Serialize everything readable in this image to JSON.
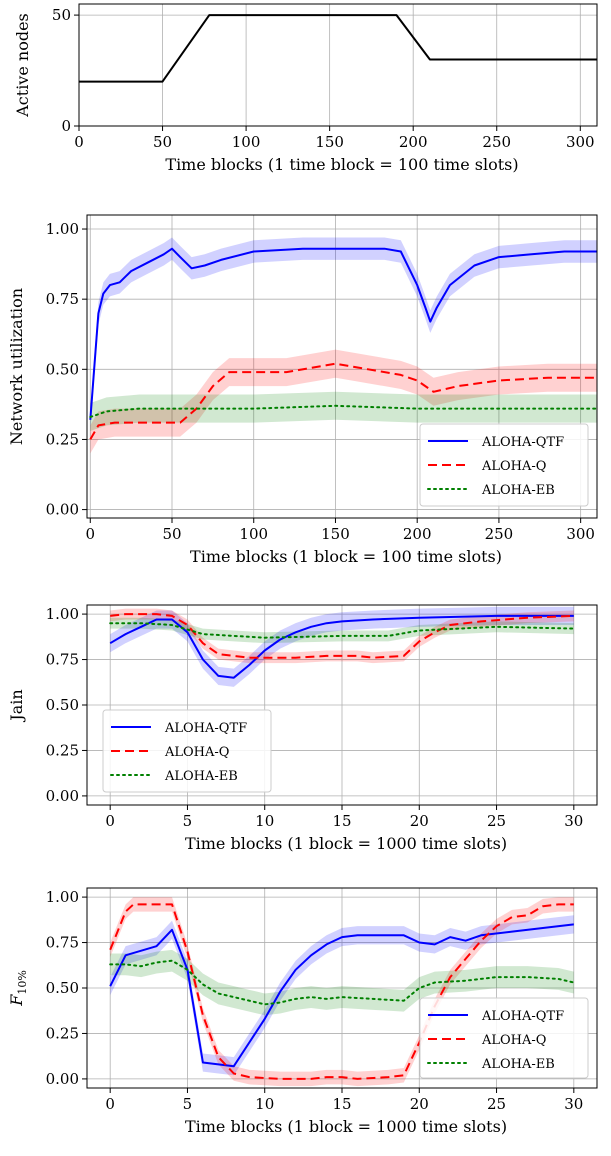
{
  "chart_data": [
    {
      "type": "line",
      "xlabel": "Time blocks (1 time block = 100 time slots)",
      "ylabel": "Active nodes",
      "xlim": [
        0,
        310
      ],
      "ylim": [
        0,
        55
      ],
      "xticks": [
        0,
        50,
        100,
        150,
        200,
        250,
        300
      ],
      "yticks": [
        0,
        50
      ],
      "grid": true,
      "series": [
        {
          "color": "#000000",
          "points": [
            [
              0,
              20
            ],
            [
              50,
              20
            ],
            [
              78,
              50
            ],
            [
              190,
              50
            ],
            [
              210,
              30
            ],
            [
              310,
              30
            ]
          ]
        }
      ]
    },
    {
      "type": "line",
      "xlabel": "Time blocks (1 block = 100 time slots)",
      "ylabel": "Network utilization",
      "xlim": [
        -2,
        310
      ],
      "ylim": [
        -0.03,
        1.05
      ],
      "xticks": [
        0,
        50,
        100,
        150,
        200,
        250,
        300
      ],
      "yticks": [
        0.0,
        0.25,
        0.5,
        0.75,
        1.0
      ],
      "grid": true,
      "legend": "lower-right",
      "series": [
        {
          "name": "ALOHA-QTF",
          "color": "#0000ff",
          "style": "solid",
          "band": 0.04,
          "points": [
            [
              0,
              0.32
            ],
            [
              3,
              0.55
            ],
            [
              5,
              0.7
            ],
            [
              8,
              0.77
            ],
            [
              12,
              0.8
            ],
            [
              18,
              0.81
            ],
            [
              25,
              0.85
            ],
            [
              35,
              0.88
            ],
            [
              45,
              0.91
            ],
            [
              50,
              0.93
            ],
            [
              55,
              0.9
            ],
            [
              62,
              0.86
            ],
            [
              70,
              0.87
            ],
            [
              80,
              0.89
            ],
            [
              100,
              0.92
            ],
            [
              130,
              0.93
            ],
            [
              150,
              0.93
            ],
            [
              180,
              0.93
            ],
            [
              190,
              0.92
            ],
            [
              200,
              0.8
            ],
            [
              205,
              0.72
            ],
            [
              208,
              0.67
            ],
            [
              212,
              0.72
            ],
            [
              220,
              0.8
            ],
            [
              235,
              0.87
            ],
            [
              250,
              0.9
            ],
            [
              270,
              0.91
            ],
            [
              290,
              0.92
            ],
            [
              310,
              0.92
            ]
          ]
        },
        {
          "name": "ALOHA-Q",
          "color": "#ff0000",
          "style": "dashed",
          "band": 0.05,
          "points": [
            [
              0,
              0.25
            ],
            [
              5,
              0.3
            ],
            [
              15,
              0.31
            ],
            [
              50,
              0.31
            ],
            [
              55,
              0.31
            ],
            [
              65,
              0.36
            ],
            [
              75,
              0.44
            ],
            [
              85,
              0.49
            ],
            [
              100,
              0.49
            ],
            [
              120,
              0.49
            ],
            [
              150,
              0.52
            ],
            [
              170,
              0.5
            ],
            [
              190,
              0.48
            ],
            [
              200,
              0.46
            ],
            [
              210,
              0.42
            ],
            [
              225,
              0.44
            ],
            [
              250,
              0.46
            ],
            [
              280,
              0.47
            ],
            [
              310,
              0.47
            ]
          ]
        },
        {
          "name": "ALOHA-EB",
          "color": "#008000",
          "style": "dotted",
          "band": 0.05,
          "points": [
            [
              0,
              0.33
            ],
            [
              10,
              0.35
            ],
            [
              30,
              0.36
            ],
            [
              60,
              0.36
            ],
            [
              100,
              0.36
            ],
            [
              150,
              0.37
            ],
            [
              200,
              0.36
            ],
            [
              250,
              0.36
            ],
            [
              310,
              0.36
            ]
          ]
        }
      ]
    },
    {
      "type": "line",
      "xlabel": "Time blocks (1 block = 1000 time slots)",
      "ylabel": "Jain",
      "xlim": [
        -1.5,
        31.5
      ],
      "ylim": [
        -0.05,
        1.05
      ],
      "xticks": [
        0,
        5,
        10,
        15,
        20,
        25,
        30
      ],
      "yticks": [
        0.0,
        0.25,
        0.5,
        0.75,
        1.0
      ],
      "grid": true,
      "legend": "lower-left",
      "series": [
        {
          "name": "ALOHA-QTF",
          "color": "#0000ff",
          "style": "solid",
          "band": 0.05,
          "points": [
            [
              0,
              0.84
            ],
            [
              1,
              0.89
            ],
            [
              2,
              0.93
            ],
            [
              3,
              0.97
            ],
            [
              4,
              0.97
            ],
            [
              5,
              0.9
            ],
            [
              6,
              0.75
            ],
            [
              7,
              0.66
            ],
            [
              8,
              0.65
            ],
            [
              9,
              0.72
            ],
            [
              10,
              0.8
            ],
            [
              11,
              0.86
            ],
            [
              12,
              0.9
            ],
            [
              13,
              0.93
            ],
            [
              14,
              0.95
            ],
            [
              15,
              0.96
            ],
            [
              17,
              0.97
            ],
            [
              20,
              0.98
            ],
            [
              25,
              0.99
            ],
            [
              30,
              0.99
            ]
          ]
        },
        {
          "name": "ALOHA-Q",
          "color": "#ff0000",
          "style": "dashed",
          "band": 0.03,
          "points": [
            [
              0,
              0.99
            ],
            [
              1,
              1.0
            ],
            [
              2,
              1.0
            ],
            [
              3,
              1.0
            ],
            [
              4,
              0.99
            ],
            [
              5,
              0.94
            ],
            [
              6,
              0.84
            ],
            [
              7,
              0.78
            ],
            [
              8,
              0.77
            ],
            [
              9,
              0.76
            ],
            [
              10,
              0.76
            ],
            [
              12,
              0.76
            ],
            [
              14,
              0.77
            ],
            [
              16,
              0.77
            ],
            [
              17,
              0.76
            ],
            [
              19,
              0.77
            ],
            [
              20,
              0.85
            ],
            [
              21,
              0.9
            ],
            [
              22,
              0.94
            ],
            [
              24,
              0.96
            ],
            [
              27,
              0.98
            ],
            [
              30,
              0.99
            ]
          ]
        },
        {
          "name": "ALOHA-EB",
          "color": "#008000",
          "style": "dotted",
          "band": 0.03,
          "points": [
            [
              0,
              0.95
            ],
            [
              2,
              0.95
            ],
            [
              4,
              0.94
            ],
            [
              6,
              0.89
            ],
            [
              8,
              0.88
            ],
            [
              10,
              0.87
            ],
            [
              15,
              0.88
            ],
            [
              18,
              0.88
            ],
            [
              20,
              0.91
            ],
            [
              25,
              0.93
            ],
            [
              30,
              0.92
            ]
          ]
        }
      ]
    },
    {
      "type": "line",
      "xlabel": "Time blocks (1 block = 1000 time slots)",
      "ylabel": "F10%",
      "ylabel_main": "F",
      "ylabel_sub": "10%",
      "xlim": [
        -1.5,
        31.5
      ],
      "ylim": [
        -0.05,
        1.05
      ],
      "xticks": [
        0,
        5,
        10,
        15,
        20,
        25,
        30
      ],
      "yticks": [
        0.0,
        0.25,
        0.5,
        0.75,
        1.0
      ],
      "grid": true,
      "legend": "lower-right",
      "series": [
        {
          "name": "ALOHA-QTF",
          "color": "#0000ff",
          "style": "solid",
          "band": 0.05,
          "points": [
            [
              0,
              0.51
            ],
            [
              1,
              0.68
            ],
            [
              3,
              0.73
            ],
            [
              4,
              0.82
            ],
            [
              5,
              0.6
            ],
            [
              6,
              0.09
            ],
            [
              7,
              0.08
            ],
            [
              8,
              0.07
            ],
            [
              9,
              0.2
            ],
            [
              10,
              0.33
            ],
            [
              11,
              0.48
            ],
            [
              12,
              0.6
            ],
            [
              13,
              0.68
            ],
            [
              14,
              0.74
            ],
            [
              15,
              0.78
            ],
            [
              16,
              0.79
            ],
            [
              18,
              0.79
            ],
            [
              19,
              0.79
            ],
            [
              20,
              0.75
            ],
            [
              21,
              0.74
            ],
            [
              22,
              0.78
            ],
            [
              23,
              0.76
            ],
            [
              24,
              0.79
            ],
            [
              26,
              0.81
            ],
            [
              28,
              0.83
            ],
            [
              30,
              0.85
            ]
          ]
        },
        {
          "name": "ALOHA-Q",
          "color": "#ff0000",
          "style": "dashed",
          "band": 0.04,
          "points": [
            [
              0,
              0.71
            ],
            [
              1,
              0.92
            ],
            [
              1.5,
              0.96
            ],
            [
              3,
              0.96
            ],
            [
              4,
              0.96
            ],
            [
              5,
              0.7
            ],
            [
              6,
              0.35
            ],
            [
              7,
              0.12
            ],
            [
              8,
              0.03
            ],
            [
              9,
              0.01
            ],
            [
              11,
              0.0
            ],
            [
              13,
              0.0
            ],
            [
              14,
              0.01
            ],
            [
              15,
              0.01
            ],
            [
              16,
              0.0
            ],
            [
              18,
              0.01
            ],
            [
              19,
              0.02
            ],
            [
              20,
              0.2
            ],
            [
              21,
              0.4
            ],
            [
              22,
              0.56
            ],
            [
              23,
              0.66
            ],
            [
              24,
              0.76
            ],
            [
              25,
              0.84
            ],
            [
              26,
              0.89
            ],
            [
              27,
              0.9
            ],
            [
              28,
              0.95
            ],
            [
              29,
              0.96
            ],
            [
              30,
              0.96
            ]
          ]
        },
        {
          "name": "ALOHA-EB",
          "color": "#008000",
          "style": "dotted",
          "band": 0.06,
          "points": [
            [
              0,
              0.63
            ],
            [
              1,
              0.63
            ],
            [
              2,
              0.62
            ],
            [
              3,
              0.64
            ],
            [
              4,
              0.65
            ],
            [
              5,
              0.6
            ],
            [
              6,
              0.52
            ],
            [
              7,
              0.47
            ],
            [
              8,
              0.45
            ],
            [
              9,
              0.43
            ],
            [
              10,
              0.41
            ],
            [
              11,
              0.42
            ],
            [
              12,
              0.44
            ],
            [
              13,
              0.45
            ],
            [
              14,
              0.44
            ],
            [
              15,
              0.45
            ],
            [
              17,
              0.44
            ],
            [
              19,
              0.43
            ],
            [
              20,
              0.5
            ],
            [
              21,
              0.53
            ],
            [
              23,
              0.54
            ],
            [
              25,
              0.56
            ],
            [
              27,
              0.56
            ],
            [
              29,
              0.55
            ],
            [
              30,
              0.53
            ]
          ]
        }
      ]
    }
  ]
}
